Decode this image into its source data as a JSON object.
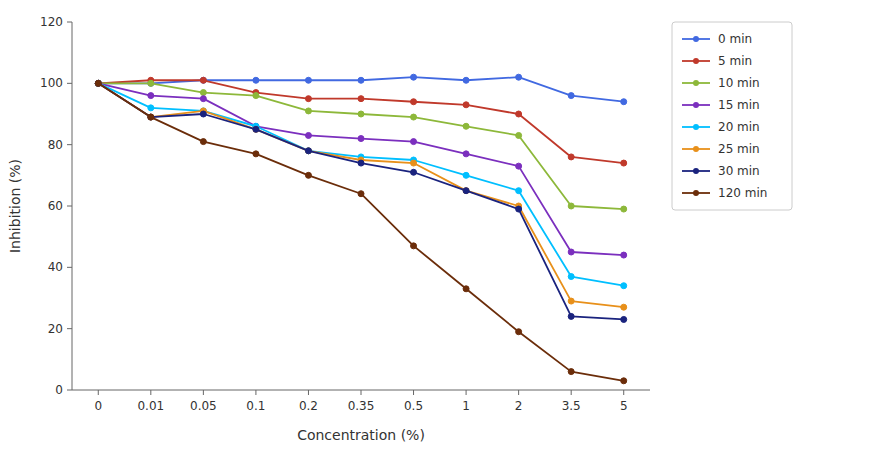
{
  "chart_data": {
    "type": "line",
    "xlabel": "Concentration (%)",
    "ylabel": "Inhibition (%)",
    "categories": [
      "0",
      "0.01",
      "0.05",
      "0.1",
      "0.2",
      "0.35",
      "0.5",
      "1",
      "2",
      "3.5",
      "5"
    ],
    "series": [
      {
        "name": "0 min",
        "color": "#4169E1",
        "values": [
          100,
          100,
          101,
          101,
          101,
          101,
          102,
          101,
          102,
          96,
          94
        ]
      },
      {
        "name": "5 min",
        "color": "#C0392B",
        "values": [
          100,
          101,
          101,
          97,
          95,
          95,
          94,
          93,
          90,
          76,
          74
        ]
      },
      {
        "name": "10 min",
        "color": "#8DB83A",
        "values": [
          100,
          100,
          97,
          96,
          91,
          90,
          89,
          86,
          83,
          60,
          59
        ]
      },
      {
        "name": "15 min",
        "color": "#7B2FBE",
        "values": [
          100,
          96,
          95,
          86,
          83,
          82,
          81,
          77,
          73,
          45,
          44
        ]
      },
      {
        "name": "20 min",
        "color": "#00BFFF",
        "values": [
          100,
          92,
          91,
          86,
          78,
          76,
          75,
          70,
          65,
          37,
          34
        ]
      },
      {
        "name": "25 min",
        "color": "#E8901A",
        "values": [
          100,
          89,
          91,
          85,
          78,
          75,
          74,
          65,
          60,
          29,
          27
        ]
      },
      {
        "name": "30 min",
        "color": "#1A237E",
        "values": [
          100,
          89,
          90,
          85,
          78,
          74,
          71,
          65,
          59,
          24,
          23
        ]
      },
      {
        "name": "120 min",
        "color": "#6B2D0A",
        "values": [
          100,
          89,
          81,
          77,
          70,
          64,
          47,
          33,
          19,
          6,
          3
        ]
      }
    ],
    "ylim": [
      0,
      120
    ],
    "yticks": [
      0,
      20,
      40,
      60,
      80,
      100,
      120
    ],
    "grid": false,
    "legend": "right",
    "marker": "circle"
  }
}
